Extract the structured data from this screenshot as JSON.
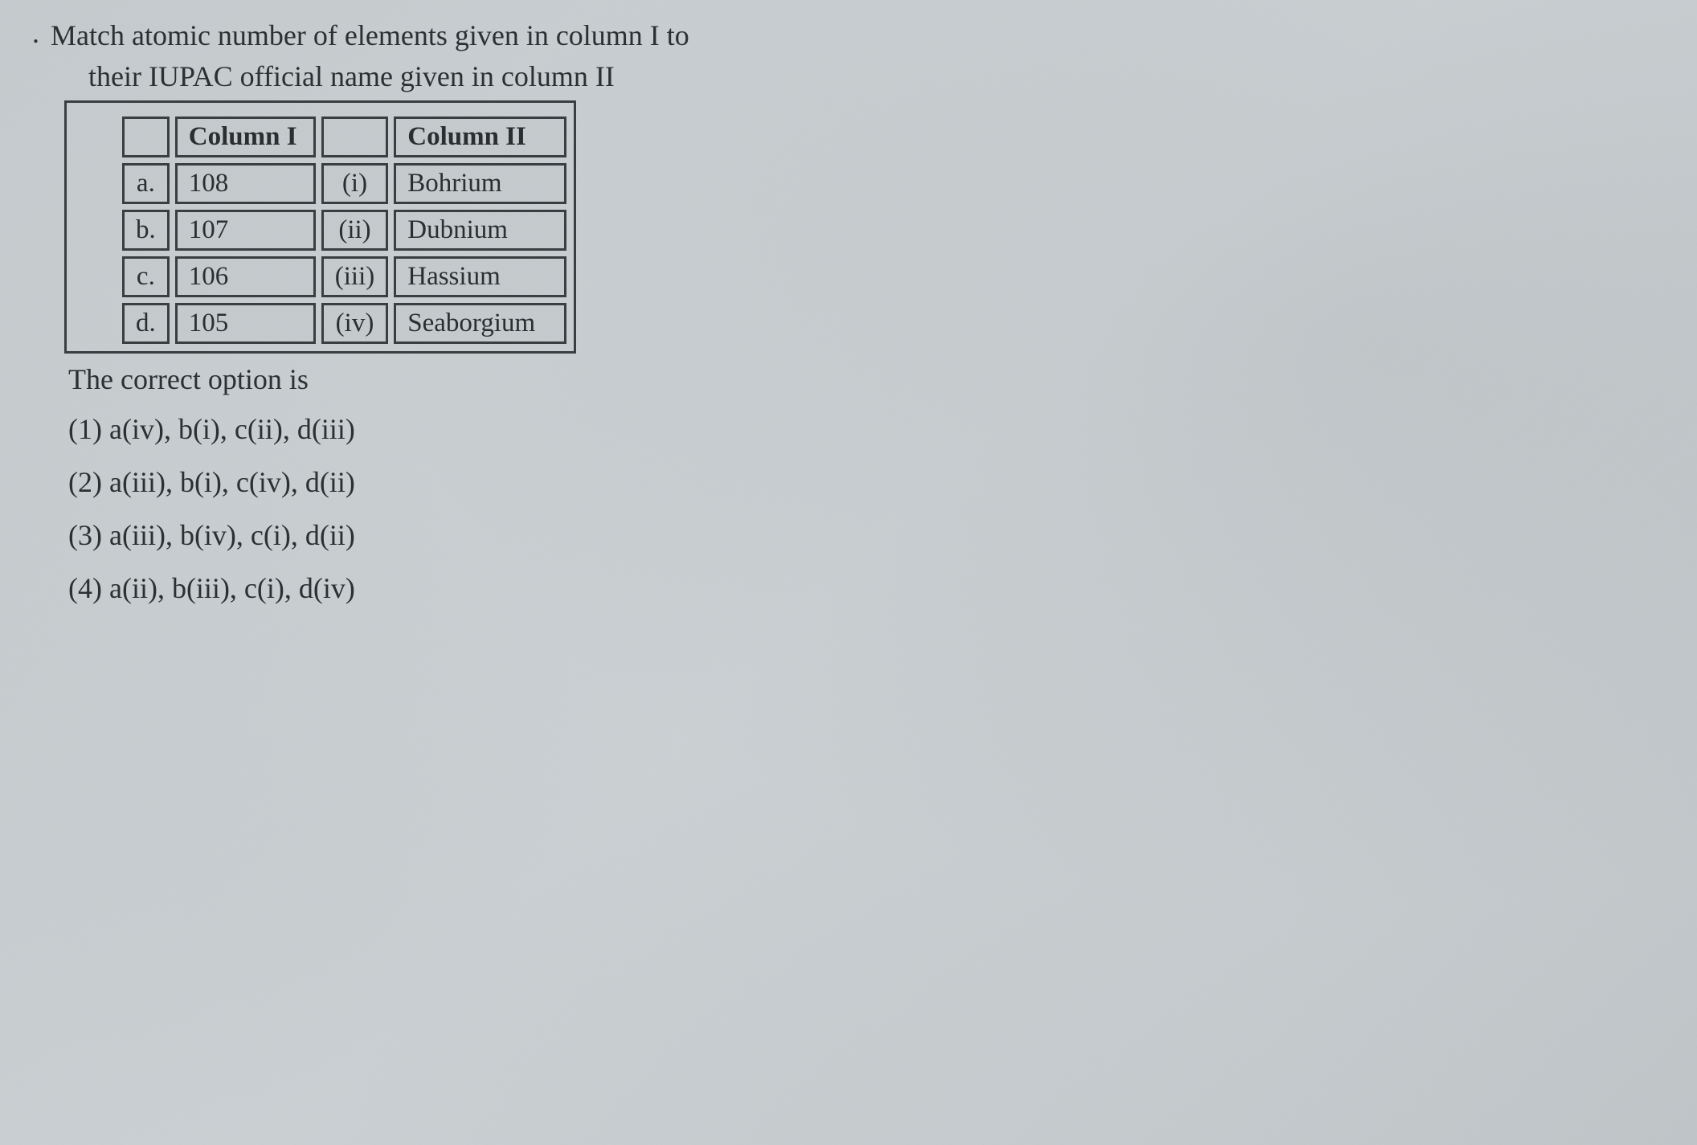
{
  "question": {
    "number_prefix": ".",
    "line1": "Match atomic number of elements given in column I to",
    "line2": "their IUPAC official name given in column II"
  },
  "table": {
    "outer_border_color": "#3a3d40",
    "cell_border_color": "#3a3d40",
    "cell_bg": "#c5cacd",
    "border_width": 3,
    "header_col1": "Column I",
    "header_col2": "Column II",
    "rows": [
      {
        "label": "a.",
        "num": "108",
        "roman": "(i)",
        "name": "Bohrium"
      },
      {
        "label": "b.",
        "num": "107",
        "roman": "(ii)",
        "name": "Dubnium"
      },
      {
        "label": "c.",
        "num": "106",
        "roman": "(iii)",
        "name": "Hassium"
      },
      {
        "label": "d.",
        "num": "105",
        "roman": "(iv)",
        "name": "Seaborgium"
      }
    ]
  },
  "correct_option_label": "The correct option is",
  "options": [
    {
      "num": "(1)",
      "text": "a(iv), b(i), c(ii), d(iii)"
    },
    {
      "num": "(2)",
      "text": "a(iii), b(i), c(iv), d(ii)"
    },
    {
      "num": "(3)",
      "text": "a(iii), b(iv), c(i), d(ii)"
    },
    {
      "num": "(4)",
      "text": "a(ii), b(iii), c(i), d(iv)"
    }
  ],
  "typography": {
    "font_family": "Georgia, 'Times New Roman', serif",
    "body_color": "#2a2d30",
    "question_fontsize": 36,
    "table_fontsize": 33,
    "option_fontsize": 36
  },
  "background_color": "#c8cdd0",
  "page_code_left": "",
  "page_code_right": ""
}
